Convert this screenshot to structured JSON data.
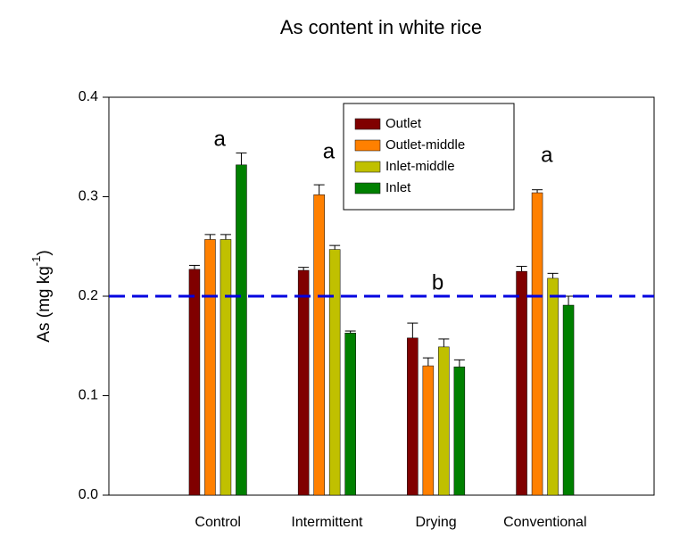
{
  "chart_data": {
    "type": "bar",
    "title": "As content in white rice",
    "ylabel": {
      "text": "As (mg kg",
      "superscript": "-1",
      "suffix": ")"
    },
    "categories": [
      "Control",
      "Intermittent",
      "Drying",
      "Conventional"
    ],
    "series": [
      {
        "name": "Outlet",
        "color": "#800000",
        "values": [
          0.227,
          0.226,
          0.158,
          0.225
        ],
        "errors": [
          0.004,
          0.003,
          0.015,
          0.005
        ]
      },
      {
        "name": "Outlet-middle",
        "color": "#ff8000",
        "values": [
          0.257,
          0.302,
          0.13,
          0.304
        ],
        "errors": [
          0.005,
          0.01,
          0.008,
          0.003
        ]
      },
      {
        "name": "Inlet-middle",
        "color": "#c0c000",
        "values": [
          0.257,
          0.247,
          0.149,
          0.218
        ],
        "errors": [
          0.005,
          0.004,
          0.008,
          0.005
        ]
      },
      {
        "name": "Inlet",
        "color": "#008000",
        "values": [
          0.332,
          0.163,
          0.129,
          0.191
        ],
        "errors": [
          0.012,
          0.002,
          0.007,
          0.009
        ]
      }
    ],
    "annotations": [
      "a",
      "a",
      "b",
      "a"
    ],
    "reference_line": {
      "value": 0.2,
      "color": "#0000e0",
      "style": "dashed"
    },
    "ylim": [
      0,
      0.4
    ],
    "yticks": [
      {
        "value": 0,
        "label": "0.0"
      },
      0.1,
      0.2,
      0.3,
      0.4
    ],
    "legend": "upper-right"
  }
}
